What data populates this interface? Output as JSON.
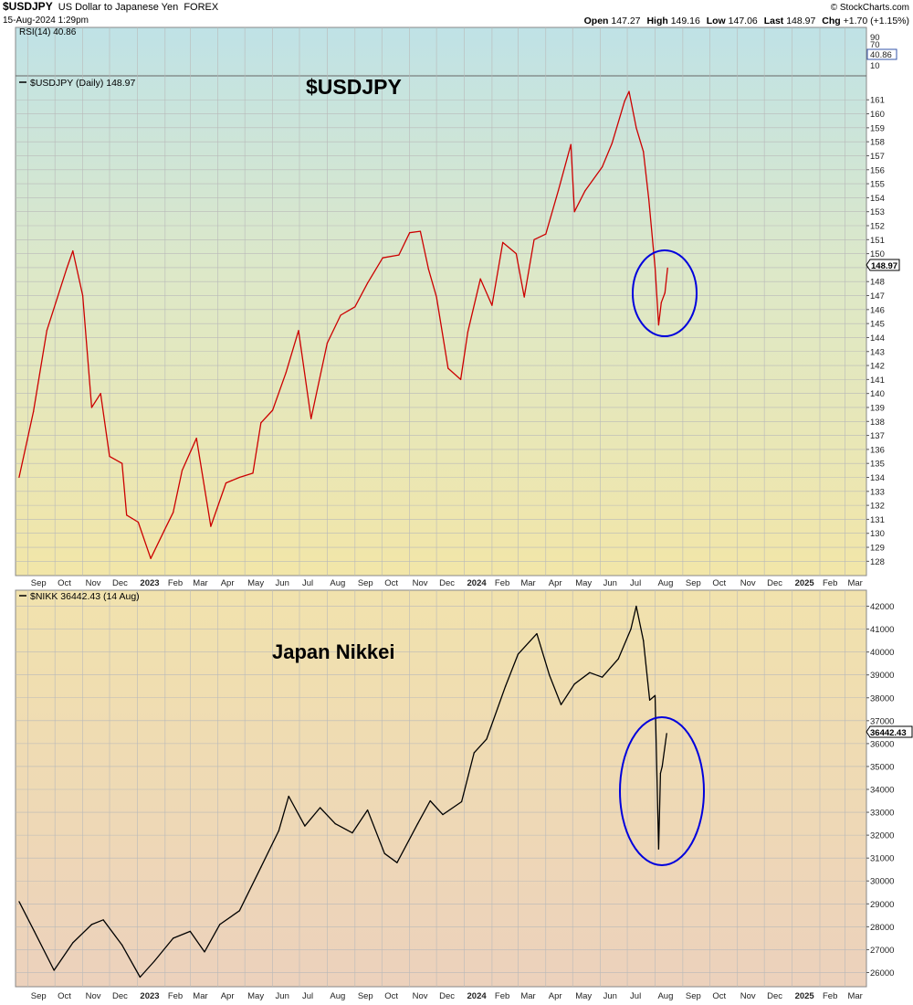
{
  "header": {
    "symbol": "$USDJPY",
    "name": "US Dollar to Japanese Yen",
    "exchange": "FOREX",
    "datetime": "15-Aug-2024 1:29pm",
    "copyright": "© StockCharts.com",
    "quote": {
      "open_label": "Open",
      "open": "147.27",
      "high_label": "High",
      "high": "149.16",
      "low_label": "Low",
      "low": "147.06",
      "last_label": "Last",
      "last": "148.97",
      "chg_label": "Chg",
      "chg": "+1.70 (+1.15%)"
    }
  },
  "colors": {
    "usdjpy_line": "#cc0000",
    "nikkei_line": "#000000",
    "circle": "#0000dd",
    "annotation_red": "#dd0000"
  },
  "rsi": {
    "legend": "RSI(14) 40.86",
    "value": "40.86",
    "ticks": [
      "90",
      "70",
      "10"
    ]
  },
  "usdjpy": {
    "legend": "$USDJPY (Daily) 148.97",
    "annotation": "$USDJPY",
    "last_tag": "148.97",
    "y_ticks": [
      "128",
      "129",
      "130",
      "131",
      "132",
      "133",
      "134",
      "135",
      "136",
      "137",
      "138",
      "139",
      "140",
      "141",
      "142",
      "143",
      "144",
      "145",
      "146",
      "147",
      "148",
      "149",
      "150",
      "151",
      "152",
      "153",
      "154",
      "155",
      "156",
      "157",
      "158",
      "159",
      "160",
      "161"
    ]
  },
  "nikkei": {
    "legend": "$NIKK 36442.43 (14 Aug)",
    "annotation": "Japan Nikkei",
    "last_tag": "36442.43",
    "y_ticks": [
      "26000",
      "27000",
      "28000",
      "29000",
      "30000",
      "31000",
      "32000",
      "33000",
      "34000",
      "35000",
      "36000",
      "37000",
      "38000",
      "39000",
      "40000",
      "41000",
      "42000"
    ]
  },
  "x_axis": {
    "labels": [
      "Sep",
      "Oct",
      "Nov",
      "Dec",
      "2023",
      "Feb",
      "Mar",
      "Apr",
      "May",
      "Jun",
      "Jul",
      "Aug",
      "Sep",
      "Oct",
      "Nov",
      "Dec",
      "2024",
      "Feb",
      "Mar",
      "Apr",
      "May",
      "Jun",
      "Jul",
      "Aug",
      "Sep",
      "Oct",
      "Nov",
      "Dec",
      "2025",
      "Feb",
      "Mar"
    ]
  },
  "chart_data": [
    {
      "type": "line",
      "title": "$USDJPY (Daily) 148.97",
      "series": [
        {
          "name": "$USDJPY",
          "x": [
            "2022-08-22",
            "2022-09-07",
            "2022-09-22",
            "2022-10-14",
            "2022-10-21",
            "2022-11-01",
            "2022-11-11",
            "2022-11-21",
            "2022-12-01",
            "2022-12-15",
            "2022-12-20",
            "2023-01-02",
            "2023-01-16",
            "2023-01-31",
            "2023-02-10",
            "2023-02-20",
            "2023-03-08",
            "2023-03-24",
            "2023-04-10",
            "2023-04-25",
            "2023-05-10",
            "2023-05-19",
            "2023-06-01",
            "2023-06-16",
            "2023-06-30",
            "2023-07-14",
            "2023-08-01",
            "2023-08-16",
            "2023-09-01",
            "2023-09-15",
            "2023-10-02",
            "2023-10-20",
            "2023-11-01",
            "2023-11-13",
            "2023-11-22",
            "2023-12-01",
            "2023-12-14",
            "2023-12-28",
            "2024-01-05",
            "2024-01-19",
            "2024-02-01",
            "2024-02-13",
            "2024-02-28",
            "2024-03-08",
            "2024-03-19",
            "2024-04-01",
            "2024-04-15",
            "2024-04-29",
            "2024-05-03",
            "2024-05-15",
            "2024-06-03",
            "2024-06-14",
            "2024-06-28",
            "2024-07-03",
            "2024-07-11",
            "2024-07-19",
            "2024-07-25",
            "2024-08-01",
            "2024-08-05",
            "2024-08-08",
            "2024-08-12",
            "2024-08-15"
          ],
          "values": [
            134.0,
            138.7,
            144.5,
            148.9,
            150.2,
            147.0,
            139.0,
            140.0,
            135.5,
            135.0,
            131.3,
            130.8,
            128.2,
            130.2,
            131.5,
            134.5,
            136.8,
            130.5,
            133.6,
            134.0,
            134.3,
            137.9,
            138.8,
            141.5,
            144.5,
            138.2,
            143.6,
            145.6,
            146.2,
            147.9,
            149.7,
            149.9,
            151.5,
            151.6,
            148.9,
            146.9,
            141.8,
            141.0,
            144.4,
            148.2,
            146.3,
            150.8,
            150.0,
            146.9,
            151.0,
            151.4,
            154.5,
            157.8,
            153.0,
            154.5,
            156.2,
            157.9,
            160.9,
            161.6,
            159.0,
            157.3,
            153.9,
            149.0,
            144.9,
            146.5,
            147.2,
            148.97
          ],
          "last": 148.97
        }
      ],
      "ylim": [
        127.5,
        161.8
      ],
      "y_ticks": [
        128,
        129,
        130,
        131,
        132,
        133,
        134,
        135,
        136,
        137,
        138,
        139,
        140,
        141,
        142,
        143,
        144,
        145,
        146,
        147,
        148,
        149,
        150,
        151,
        152,
        153,
        154,
        155,
        156,
        157,
        158,
        159,
        160,
        161
      ],
      "annotation": "$USDJPY"
    },
    {
      "type": "line",
      "title": "$NIKK 36442.43 (14 Aug)",
      "series": [
        {
          "name": "$NIKK",
          "x": [
            "2022-08-22",
            "2022-09-08",
            "2022-09-30",
            "2022-10-21",
            "2022-11-11",
            "2022-11-24",
            "2022-12-15",
            "2023-01-04",
            "2023-01-20",
            "2023-02-10",
            "2023-03-01",
            "2023-03-17",
            "2023-04-03",
            "2023-04-25",
            "2023-05-19",
            "2023-06-08",
            "2023-06-19",
            "2023-07-07",
            "2023-07-24",
            "2023-08-10",
            "2023-08-29",
            "2023-09-15",
            "2023-10-04",
            "2023-10-18",
            "2023-11-10",
            "2023-11-24",
            "2023-12-08",
            "2023-12-29",
            "2024-01-12",
            "2024-01-26",
            "2024-02-16",
            "2024-03-01",
            "2024-03-22",
            "2024-04-05",
            "2024-04-18",
            "2024-05-03",
            "2024-05-20",
            "2024-06-03",
            "2024-06-21",
            "2024-07-05",
            "2024-07-11",
            "2024-07-19",
            "2024-07-26",
            "2024-08-01",
            "2024-08-05",
            "2024-08-07",
            "2024-08-09",
            "2024-08-14"
          ],
          "values": [
            29100,
            27800,
            26100,
            27300,
            28100,
            28300,
            27200,
            25800,
            26500,
            27500,
            27800,
            26900,
            28100,
            28700,
            30600,
            32200,
            33700,
            32400,
            33200,
            32500,
            32100,
            33100,
            31200,
            30800,
            32500,
            33500,
            32900,
            33460,
            35600,
            36200,
            38500,
            39900,
            40800,
            39000,
            37700,
            38600,
            39100,
            38900,
            39700,
            41000,
            42000,
            40500,
            37900,
            38100,
            31400,
            34700,
            35000,
            36442
          ],
          "last": 36442.43
        }
      ],
      "ylim": [
        25700,
        42300
      ],
      "y_ticks": [
        26000,
        27000,
        28000,
        29000,
        30000,
        31000,
        32000,
        33000,
        34000,
        35000,
        36000,
        37000,
        38000,
        39000,
        40000,
        41000,
        42000
      ],
      "annotation": "Japan Nikkei"
    }
  ]
}
